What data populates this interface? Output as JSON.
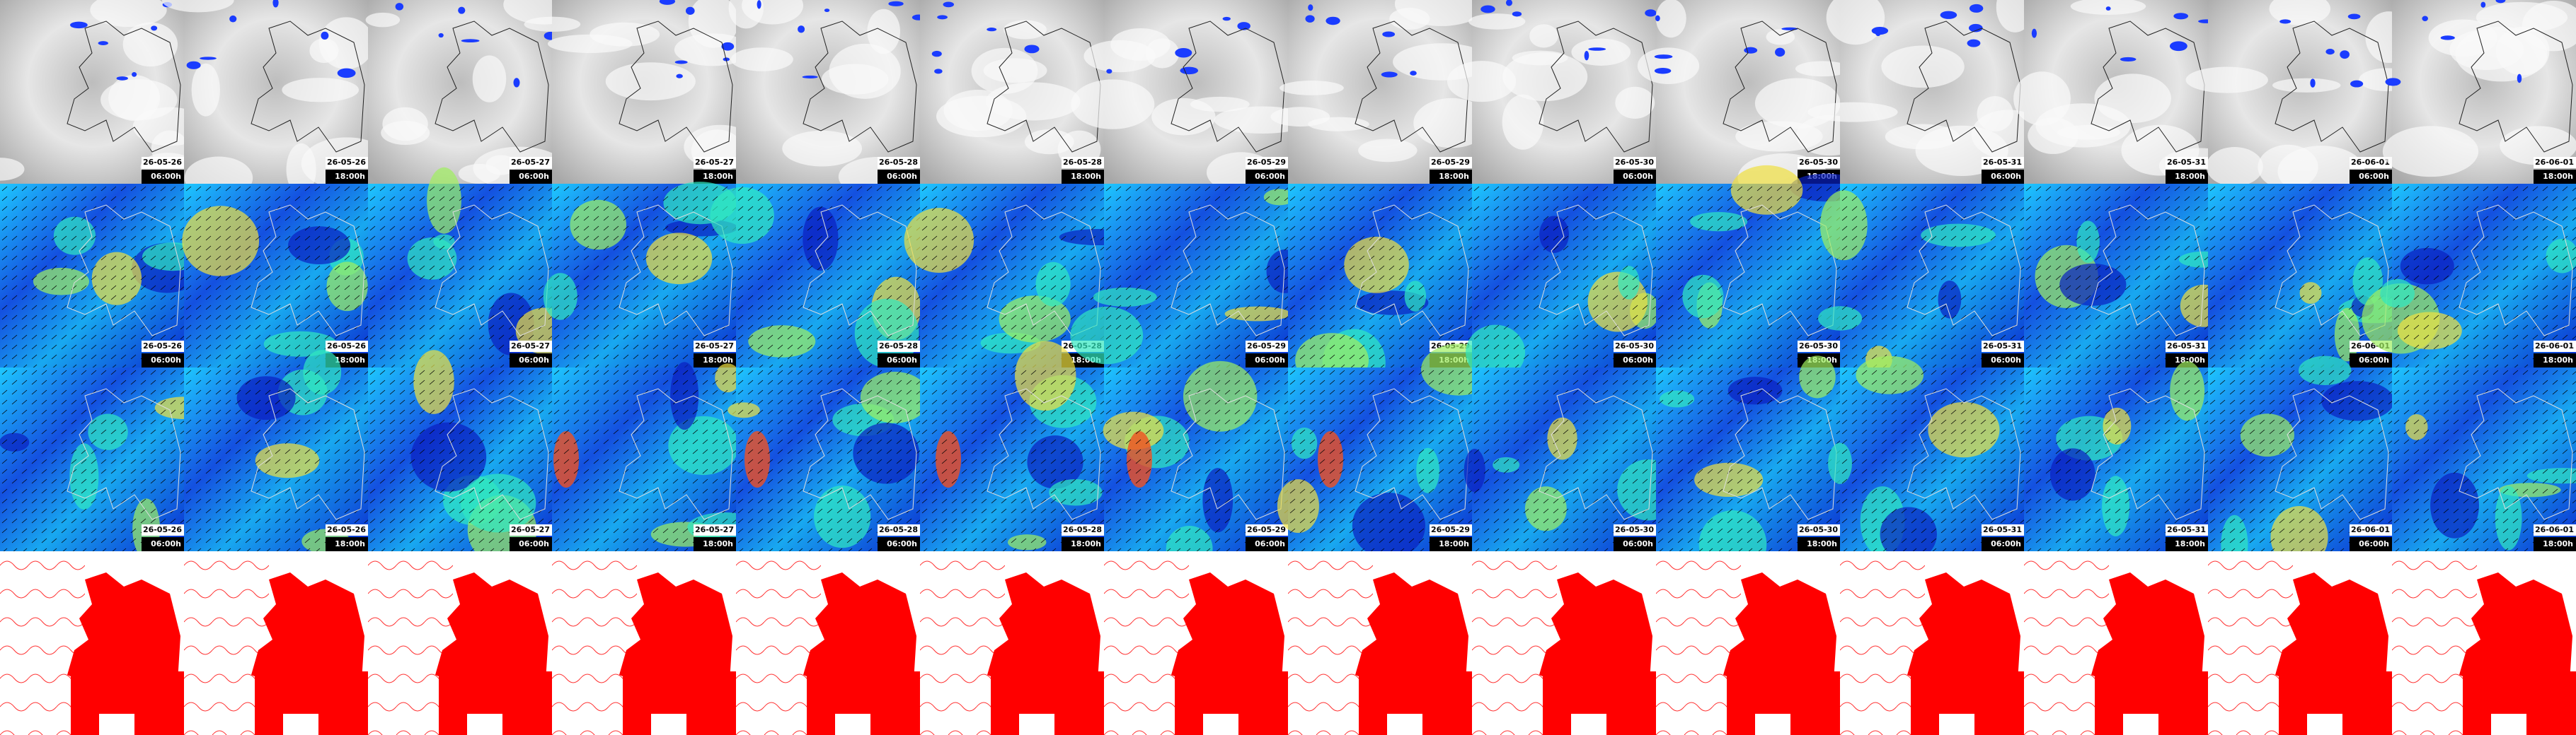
{
  "columns": [
    {
      "date": "26-05-26",
      "time": "06:00h"
    },
    {
      "date": "26-05-26",
      "time": "18:00h"
    },
    {
      "date": "26-05-27",
      "time": "06:00h"
    },
    {
      "date": "26-05-27",
      "time": "18:00h"
    },
    {
      "date": "26-05-28",
      "time": "06:00h"
    },
    {
      "date": "26-05-28",
      "time": "18:00h"
    },
    {
      "date": "26-05-29",
      "time": "06:00h"
    },
    {
      "date": "26-05-29",
      "time": "18:00h"
    },
    {
      "date": "26-05-30",
      "time": "06:00h"
    },
    {
      "date": "26-05-30",
      "time": "18:00h"
    },
    {
      "date": "26-05-31",
      "time": "06:00h"
    },
    {
      "date": "26-05-31",
      "time": "18:00h"
    },
    {
      "date": "26-06-01",
      "time": "06:00h"
    },
    {
      "date": "26-06-01",
      "time": "18:00h"
    }
  ]
}
